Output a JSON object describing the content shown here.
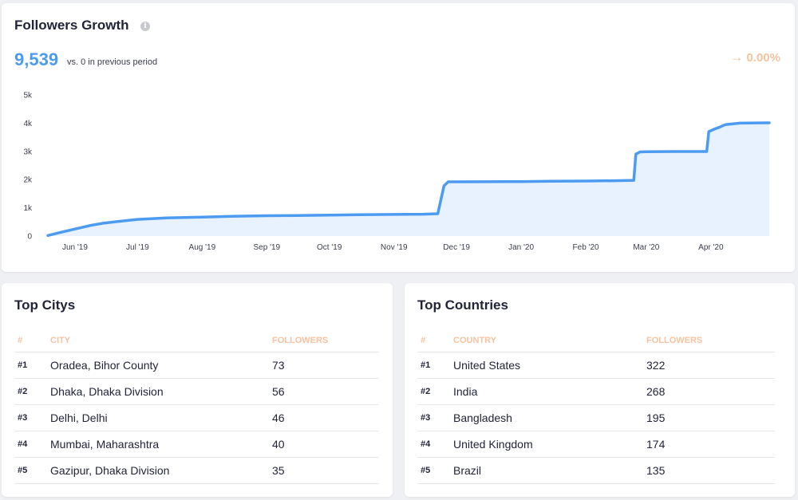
{
  "colors": {
    "accent_blue": "#4c9bf0",
    "area_fill": "#e8f2fe",
    "header_orange": "#f6c29f",
    "change_orange": "#f6c29f"
  },
  "growth": {
    "title": "Followers Growth",
    "info_icon": "i",
    "total": "9,539",
    "comparison": "vs. 0 in previous period",
    "change_arrow": "→",
    "change_value": "0.00%"
  },
  "chart_data": {
    "type": "area",
    "title": "Followers Growth",
    "xlabel": "",
    "ylabel": "",
    "ylim": [
      0,
      5000
    ],
    "y_ticks": [
      "0",
      "1k",
      "2k",
      "3k",
      "4k",
      "5k"
    ],
    "x_ticks": [
      "Jun '19",
      "Jul '19",
      "Aug '19",
      "Sep '19",
      "Oct '19",
      "Nov '19",
      "Dec '19",
      "Jan '20",
      "Feb '20",
      "Mar '20",
      "Apr '20"
    ],
    "grid": false,
    "x": [
      "2019-05-19",
      "2019-05-25",
      "2019-06-01",
      "2019-06-08",
      "2019-06-15",
      "2019-06-22",
      "2019-07-01",
      "2019-07-15",
      "2019-08-01",
      "2019-08-15",
      "2019-09-01",
      "2019-09-15",
      "2019-10-01",
      "2019-10-15",
      "2019-11-01",
      "2019-11-15",
      "2019-11-22",
      "2019-11-25",
      "2019-11-27",
      "2019-12-01",
      "2019-12-15",
      "2020-01-01",
      "2020-01-15",
      "2020-02-01",
      "2020-02-15",
      "2020-02-24",
      "2020-02-25",
      "2020-02-27",
      "2020-03-01",
      "2020-03-15",
      "2020-03-30",
      "2020-03-31",
      "2020-04-03",
      "2020-04-05",
      "2020-04-08",
      "2020-04-15",
      "2020-04-29"
    ],
    "series": [
      {
        "values": [
          20,
          130,
          250,
          370,
          460,
          520,
          590,
          640,
          670,
          700,
          720,
          730,
          740,
          755,
          765,
          775,
          790,
          1780,
          1920,
          1920,
          1925,
          1930,
          1940,
          1950,
          1960,
          1975,
          2900,
          2980,
          2990,
          2995,
          2995,
          3700,
          3800,
          3850,
          3950,
          4000,
          4010
        ]
      }
    ]
  },
  "cities": {
    "title": "Top Citys",
    "columns": [
      "#",
      "CITY",
      "FOLLOWERS"
    ],
    "rows": [
      {
        "rank": "#1",
        "name": "Oradea, Bihor County",
        "followers": "73"
      },
      {
        "rank": "#2",
        "name": "Dhaka, Dhaka Division",
        "followers": "56"
      },
      {
        "rank": "#3",
        "name": "Delhi, Delhi",
        "followers": "46"
      },
      {
        "rank": "#4",
        "name": "Mumbai, Maharashtra",
        "followers": "40"
      },
      {
        "rank": "#5",
        "name": "Gazipur, Dhaka Division",
        "followers": "35"
      }
    ]
  },
  "countries": {
    "title": "Top Countries",
    "columns": [
      "#",
      "COUNTRY",
      "FOLLOWERS"
    ],
    "rows": [
      {
        "rank": "#1",
        "name": "United States",
        "followers": "322"
      },
      {
        "rank": "#2",
        "name": "India",
        "followers": "268"
      },
      {
        "rank": "#3",
        "name": "Bangladesh",
        "followers": "195"
      },
      {
        "rank": "#4",
        "name": "United Kingdom",
        "followers": "174"
      },
      {
        "rank": "#5",
        "name": "Brazil",
        "followers": "135"
      }
    ]
  }
}
